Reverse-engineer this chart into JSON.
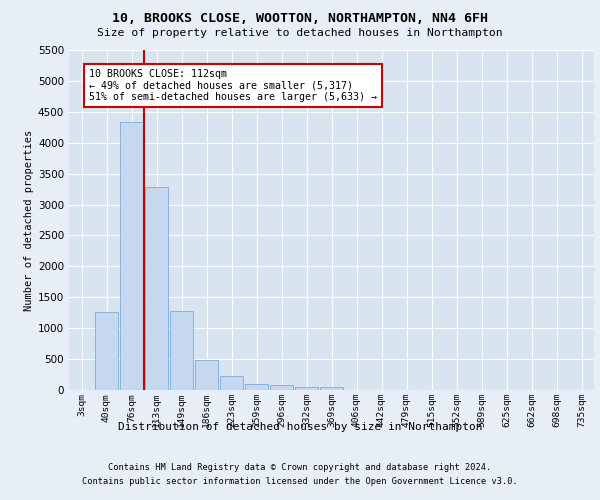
{
  "title_line1": "10, BROOKS CLOSE, WOOTTON, NORTHAMPTON, NN4 6FH",
  "title_line2": "Size of property relative to detached houses in Northampton",
  "xlabel": "Distribution of detached houses by size in Northampton",
  "ylabel": "Number of detached properties",
  "bar_labels": [
    "3sqm",
    "40sqm",
    "76sqm",
    "113sqm",
    "149sqm",
    "186sqm",
    "223sqm",
    "259sqm",
    "296sqm",
    "332sqm",
    "369sqm",
    "406sqm",
    "442sqm",
    "479sqm",
    "515sqm",
    "552sqm",
    "589sqm",
    "625sqm",
    "662sqm",
    "698sqm",
    "735sqm"
  ],
  "bar_values": [
    0,
    1260,
    4330,
    3290,
    1270,
    490,
    220,
    100,
    80,
    55,
    55,
    0,
    0,
    0,
    0,
    0,
    0,
    0,
    0,
    0,
    0
  ],
  "bar_color": "#c5d8f0",
  "bar_edgecolor": "#7aaddc",
  "vline_x": 2.5,
  "vline_color": "#cc0000",
  "annotation_text": "10 BROOKS CLOSE: 112sqm\n← 49% of detached houses are smaller (5,317)\n51% of semi-detached houses are larger (5,633) →",
  "annotation_box_color": "#cc0000",
  "ylim": [
    0,
    5500
  ],
  "yticks": [
    0,
    500,
    1000,
    1500,
    2000,
    2500,
    3000,
    3500,
    4000,
    4500,
    5000,
    5500
  ],
  "background_color": "#e8eef7",
  "plot_background": "#d8e4f0",
  "footer_line1": "Contains HM Land Registry data © Crown copyright and database right 2024.",
  "footer_line2": "Contains public sector information licensed under the Open Government Licence v3.0."
}
